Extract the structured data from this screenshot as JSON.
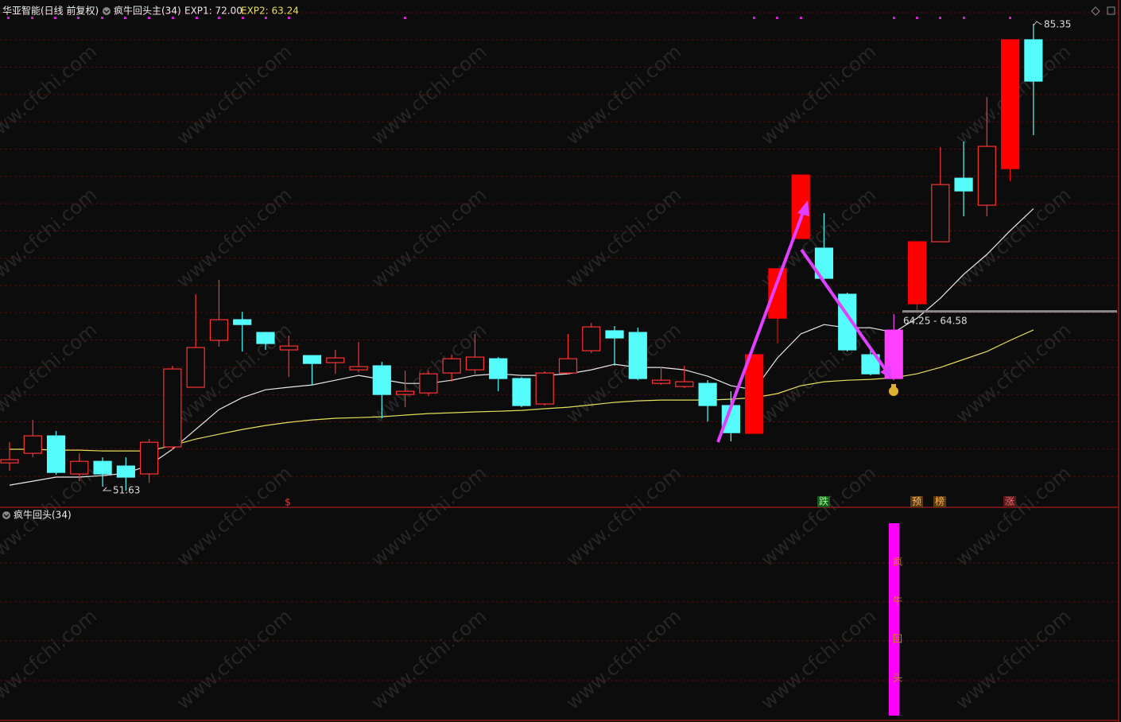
{
  "chart_data": {
    "type": "candlestick",
    "title": "华亚智能(日线 前复权)",
    "subtitle": "疯牛回头主(34)",
    "watermark": "www.cfchi.com",
    "ylim": [
      50.43,
      87.07
    ],
    "open": [
      53.64,
      54.33,
      55.59,
      52.84,
      53.75,
      53.41,
      52.84,
      54.79,
      59.1,
      62.49,
      63.98,
      63.06,
      61.8,
      61.39,
      60.88,
      60.36,
      60.65,
      58.58,
      58.69,
      60.13,
      60.36,
      61.16,
      59.73,
      57.89,
      60.13,
      61.74,
      63.18,
      63.06,
      59.38,
      59.15,
      59.38,
      57.78,
      55.77,
      64.09,
      69.84,
      69.15,
      65.82,
      61.45,
      59.73,
      65.13,
      69.61,
      74.2,
      72.25,
      74.89,
      84.2
    ],
    "high": [
      55.13,
      56.74,
      55.94,
      54.33,
      54.04,
      54.04,
      55.36,
      60.65,
      65.82,
      66.85,
      64.55,
      63.06,
      62.83,
      61.39,
      61.8,
      62.37,
      60.93,
      60.3,
      60.3,
      61.45,
      62.95,
      61.28,
      59.84,
      60.25,
      62.95,
      63.75,
      63.52,
      63.4,
      60.59,
      60.65,
      59.61,
      58.81,
      61.45,
      67.66,
      74.43,
      71.68,
      65.93,
      61.8,
      64.38,
      69.61,
      76.44,
      76.85,
      80.06,
      84.2,
      85.35
    ],
    "low": [
      53.07,
      54.04,
      52.78,
      52.32,
      51.92,
      51.63,
      52.2,
      54.56,
      59.1,
      62.03,
      61.68,
      61.8,
      59.84,
      59.27,
      60.07,
      60.19,
      56.86,
      57.66,
      58.46,
      59.5,
      60.07,
      58.81,
      57.66,
      57.78,
      60.02,
      61.57,
      60.65,
      59.61,
      59.27,
      59.04,
      56.63,
      55.19,
      55.77,
      62.26,
      69.84,
      66.85,
      61.68,
      59.96,
      59.61,
      64.67,
      69.61,
      71.45,
      71.45,
      73.97,
      77.31
    ],
    "close": [
      53.87,
      55.59,
      52.95,
      53.75,
      52.84,
      52.61,
      55.13,
      60.42,
      61.97,
      63.98,
      63.63,
      62.26,
      62.08,
      60.82,
      61.22,
      60.59,
      58.58,
      58.81,
      60.07,
      61.16,
      61.28,
      59.73,
      57.78,
      60.13,
      61.16,
      63.46,
      62.66,
      59.73,
      59.61,
      59.5,
      57.78,
      55.82,
      61.45,
      67.66,
      74.43,
      66.97,
      61.8,
      60.07,
      63.23,
      69.61,
      73.74,
      73.28,
      76.5,
      84.2,
      81.21
    ],
    "colors": [
      "#ff3232",
      "#ff3232",
      "#54fcfc",
      "#ff3232",
      "#54fcfc",
      "#54fcfc",
      "#ff3232",
      "#ff3232",
      "#ff3232",
      "#ff3232",
      "#54fcfc",
      "#54fcfc",
      "#ff3232",
      "#54fcfc",
      "#ff3232",
      "#ff3232",
      "#54fcfc",
      "#ff3232",
      "#ff3232",
      "#ff3232",
      "#ff3232",
      "#54fcfc",
      "#54fcfc",
      "#ff3232",
      "#ff3232",
      "#ff3232",
      "#54fcfc",
      "#54fcfc",
      "#ff3232",
      "#ff3232",
      "#54fcfc",
      "#54fcfc",
      "#ff0000",
      "#ff0000",
      "#ff0000",
      "#54fcfc",
      "#54fcfc",
      "#54fcfc",
      "#ff40ff",
      "#ff0000",
      "#ff3232",
      "#54fcfc",
      "#ff3232",
      "#ff0000",
      "#54fcfc"
    ],
    "hollow": [
      true,
      true,
      false,
      true,
      false,
      false,
      true,
      true,
      true,
      true,
      false,
      false,
      true,
      false,
      true,
      true,
      false,
      true,
      true,
      true,
      true,
      false,
      false,
      true,
      true,
      true,
      false,
      false,
      true,
      true,
      false,
      false,
      false,
      false,
      false,
      false,
      false,
      false,
      false,
      false,
      true,
      false,
      true,
      false,
      false
    ],
    "series": [
      {
        "name": "EXP1: 72.00",
        "color": "#e8e8e8",
        "values": [
          52.03,
          52.32,
          52.61,
          52.61,
          52.72,
          52.89,
          53.47,
          54.62,
          56.05,
          57.49,
          58.35,
          58.92,
          59.1,
          59.27,
          59.61,
          59.96,
          59.67,
          59.38,
          59.38,
          59.61,
          59.96,
          60.07,
          59.96,
          59.96,
          60.07,
          60.36,
          60.76,
          60.53,
          60.53,
          60.36,
          59.9,
          59.21,
          58.92,
          61.22,
          62.95,
          63.63,
          63.4,
          63.4,
          63.06,
          64.09,
          65.53,
          67.25,
          68.69,
          70.41,
          72.0
        ]
      },
      {
        "name": "EXP2: 63.24",
        "color": "#e6e05a",
        "values": [
          54.62,
          54.62,
          54.56,
          54.56,
          54.5,
          54.5,
          54.5,
          54.9,
          55.36,
          55.71,
          56.05,
          56.34,
          56.57,
          56.74,
          56.86,
          56.91,
          56.97,
          57.09,
          57.2,
          57.26,
          57.32,
          57.37,
          57.43,
          57.55,
          57.66,
          57.83,
          58.01,
          58.12,
          58.18,
          58.18,
          58.18,
          58.24,
          58.35,
          58.64,
          59.21,
          59.5,
          59.61,
          59.67,
          59.79,
          60.07,
          60.53,
          61.11,
          61.68,
          62.49,
          63.24
        ]
      }
    ],
    "price_band": {
      "low": 64.25,
      "high": 64.58,
      "label": "64.25 - 64.58"
    },
    "signals": [
      "$",
      "跌",
      "预",
      "榜",
      "涨"
    ],
    "indicator": {
      "title": "疯牛回头(34)",
      "bar_text": [
        "疯",
        "牛",
        "回",
        "头"
      ]
    }
  }
}
